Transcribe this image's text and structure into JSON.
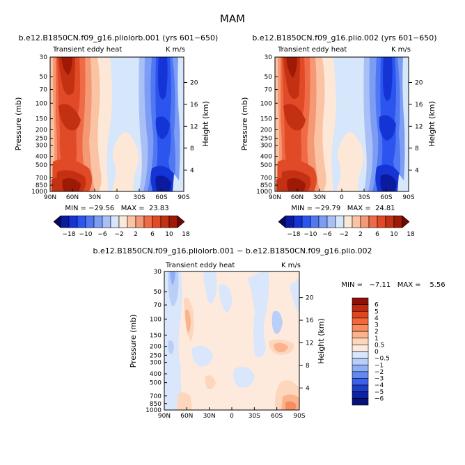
{
  "figure_title": "MAM",
  "chart_data": [
    {
      "type": "heatmap",
      "title": "b.e12.B1850CN.f09_g16.pliolorb.001 (yrs 601−650)",
      "left_label": "Transient eddy heat",
      "right_label": "K m/s",
      "xlabel": "",
      "ylabel": "Pressure (mb)",
      "y2label": "Height (km)",
      "x_ticks": [
        "90N",
        "60N",
        "30N",
        "0",
        "30S",
        "60S",
        "90S"
      ],
      "y_ticks": [
        "30",
        "50",
        "70",
        "100",
        "150",
        "200",
        "250",
        "300",
        "400",
        "500",
        "700",
        "850",
        "1000"
      ],
      "y2_ticks": [
        "20",
        "16",
        "12",
        "8",
        "4"
      ],
      "stats": "MIN = −29.56   MAX =  23.83",
      "colorbar_labels": [
        "−18",
        "−10",
        "−6",
        "−2",
        "2",
        "6",
        "10",
        "18"
      ]
    },
    {
      "type": "heatmap",
      "title": "b.e12.B1850CN.f09_g16.plio.002 (yrs 601−650)",
      "left_label": "Transient eddy heat",
      "right_label": "K m/s",
      "xlabel": "",
      "ylabel": "Pressure (mb)",
      "y2label": "Height (km)",
      "x_ticks": [
        "90N",
        "60N",
        "30N",
        "0",
        "30S",
        "60S",
        "90S"
      ],
      "y_ticks": [
        "30",
        "50",
        "70",
        "100",
        "150",
        "200",
        "250",
        "300",
        "400",
        "500",
        "700",
        "850",
        "1000"
      ],
      "y2_ticks": [
        "20",
        "16",
        "12",
        "8",
        "4"
      ],
      "stats": "MIN = −29.79   MAX =  24.81",
      "colorbar_labels": [
        "−18",
        "−10",
        "−6",
        "−2",
        "2",
        "6",
        "10",
        "18"
      ]
    },
    {
      "type": "heatmap",
      "title": "b.e12.B1850CN.f09_g16.pliolorb.001 − b.e12.B1850CN.f09_g16.plio.002",
      "left_label": "Transient eddy heat",
      "right_label": "K m/s",
      "xlabel": "",
      "ylabel": "Pressure (mb)",
      "y2label": "Height (km)",
      "x_ticks": [
        "90N",
        "60N",
        "30N",
        "0",
        "30S",
        "60S",
        "90S"
      ],
      "y_ticks": [
        "30",
        "50",
        "70",
        "100",
        "150",
        "200",
        "250",
        "300",
        "400",
        "500",
        "700",
        "850",
        "1000"
      ],
      "y2_ticks": [
        "20",
        "16",
        "12",
        "8",
        "4"
      ],
      "stats": "MIN =   −7.11   MAX =    5.56",
      "colorbar_labels": [
        "6",
        "5",
        "4",
        "3",
        "2",
        "1",
        "0.5",
        "0",
        "−0.5",
        "−1",
        "−2",
        "−3",
        "−4",
        "−5",
        "−6"
      ]
    }
  ],
  "colors": {
    "main_scale": [
      "#08085e",
      "#0b1ba0",
      "#1434d6",
      "#2b55ee",
      "#4f78f2",
      "#7d9df5",
      "#a9c0f7",
      "#d6e6fb",
      "#fde8d8",
      "#f9c3a4",
      "#f59874",
      "#ef6b47",
      "#e04a26",
      "#c43012",
      "#9f1a06",
      "#6d0805"
    ],
    "diff_scale": [
      "#900f08",
      "#c22a10",
      "#e2461f",
      "#f2683b",
      "#f78d5e",
      "#fab38c",
      "#fcd7bd",
      "#feeadd",
      "#d9e6fb",
      "#b9cff8",
      "#8eaef5",
      "#6388f0",
      "#3b62e8",
      "#1e3fce",
      "#0d23a4",
      "#06127a"
    ]
  }
}
